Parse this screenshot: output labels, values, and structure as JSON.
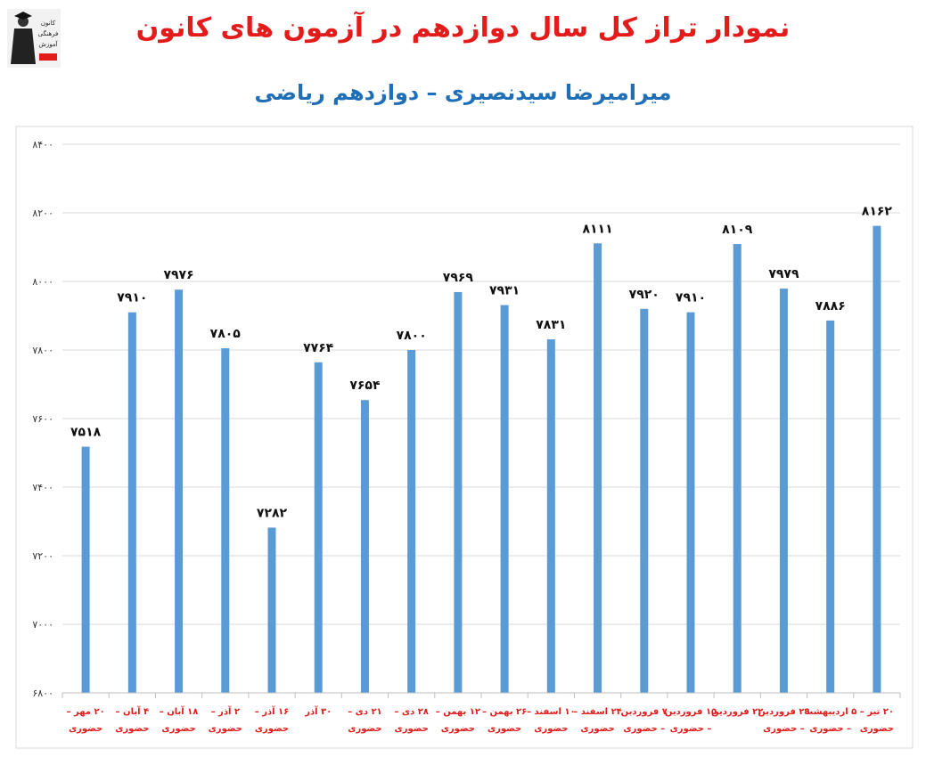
{
  "logo": {
    "text_lines": [
      "کانون",
      "فرهنگی",
      "آموزش"
    ],
    "icon": "graduate-figure-icon"
  },
  "chart_data": {
    "type": "bar",
    "title": "نمودار تراز کل سال دوازدهم در آزمون های کانون",
    "subtitle": "میرامیرضا سیدنصیری – دوازدهم ریاضی",
    "ylim": [
      6800,
      8400
    ],
    "yticks": [
      "۶۸۰۰",
      "۷۰۰۰",
      "۷۲۰۰",
      "۷۴۰۰",
      "۷۶۰۰",
      "۷۸۰۰",
      "۸۰۰۰",
      "۸۲۰۰",
      "۸۴۰۰"
    ],
    "ytick_values": [
      6800,
      7000,
      7200,
      7400,
      7600,
      7800,
      8000,
      8200,
      8400
    ],
    "grid": true,
    "bar_color": "#5b9bd5",
    "categories": [
      [
        "۲۰ مهر –",
        "حضوری"
      ],
      [
        "۴ آبان –",
        "حضوری"
      ],
      [
        "۱۸ آبان –",
        "حضوری"
      ],
      [
        "۲ آذر –",
        "حضوری"
      ],
      [
        "۱۶ آذر –",
        "حضوری"
      ],
      [
        "۳۰ آذر",
        ""
      ],
      [
        "۲۱ دی –",
        "حضوری"
      ],
      [
        "۲۸ دی –",
        "حضوری"
      ],
      [
        "۱۲ بهمن –",
        "حضوری"
      ],
      [
        "۲۶ بهمن –",
        "حضوری"
      ],
      [
        "۱۰ اسفند –",
        "حضوری"
      ],
      [
        "۲۴ اسفند –",
        "حضوری"
      ],
      [
        "۷ فروردین",
        "– حضوری"
      ],
      [
        "۱۵ فروردین",
        "– حضوری"
      ],
      [
        "۲۲ فروردین",
        ""
      ],
      [
        "۲۹ فروردین",
        "– حضوری"
      ],
      [
        "۵ اردیبهشت",
        "– حضوری"
      ],
      [
        "۲۰ تیر –",
        "حضوری"
      ]
    ],
    "values": [
      7518,
      7910,
      7976,
      7805,
      7282,
      7764,
      7654,
      7800,
      7969,
      7931,
      7831,
      8111,
      7920,
      7910,
      8109,
      7979,
      7886,
      8162
    ],
    "value_labels": [
      "۷۵۱۸",
      "۷۹۱۰",
      "۷۹۷۶",
      "۷۸۰۵",
      "۷۲۸۲",
      "۷۷۶۴",
      "۷۶۵۴",
      "۷۸۰۰",
      "۷۹۶۹",
      "۷۹۳۱",
      "۷۸۳۱",
      "۸۱۱۱",
      "۷۹۲۰",
      "۷۹۱۰",
      "۸۱۰۹",
      "۷۹۷۹",
      "۷۸۸۶",
      "۸۱۶۲"
    ]
  }
}
